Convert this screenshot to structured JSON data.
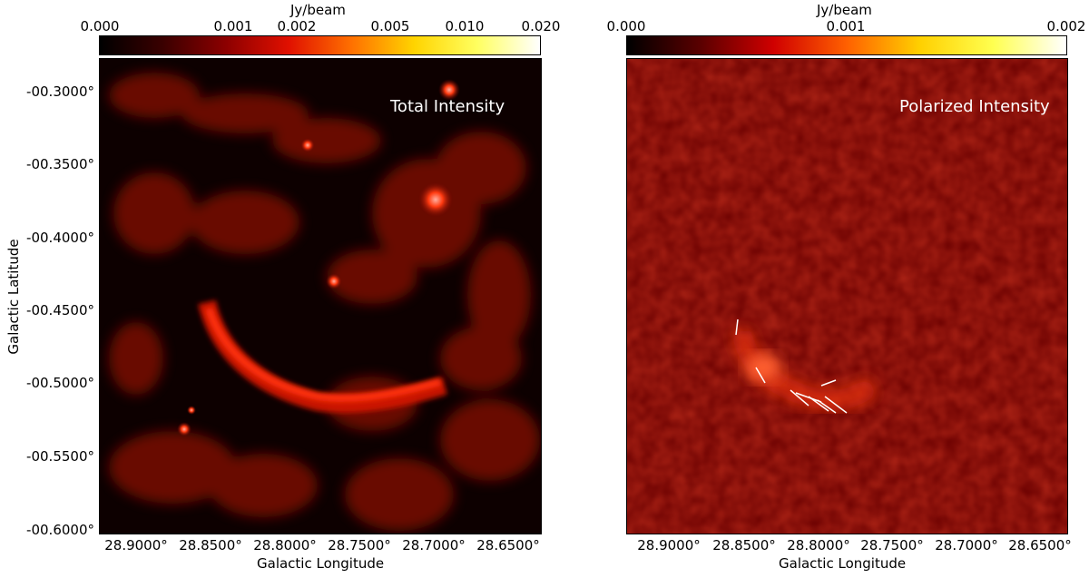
{
  "colorbars": [
    {
      "unit": "Jy/beam",
      "ticks": [
        "0.000",
        "0.001",
        "0.002",
        "0.005",
        "0.010",
        "0.020"
      ],
      "gradient": [
        "#000000",
        "#3a0000",
        "#8c0000",
        "#e01000",
        "#ff7000",
        "#ffd400",
        "#ffff60",
        "#ffffff"
      ]
    },
    {
      "unit": "Jy/beam",
      "ticks": [
        "0.000",
        "0.001",
        "0.002"
      ],
      "gradient": [
        "#000000",
        "#5a0000",
        "#d00000",
        "#ff6000",
        "#ffd000",
        "#ffff50",
        "#ffffff"
      ]
    }
  ],
  "panels": [
    {
      "label": "Total Intensity",
      "background": "#0d0000",
      "ylabel": "Galactic Latitude",
      "xlabel": "Galactic Longitude",
      "yticks": [
        "-00.3000°",
        "-00.3500°",
        "-00.4000°",
        "-00.4500°",
        "-00.5000°",
        "-00.5500°",
        "-00.6000°"
      ],
      "xticks": [
        "28.9000°",
        "28.8500°",
        "28.8000°",
        "28.7500°",
        "28.7000°",
        "28.6500°"
      ]
    },
    {
      "label": "Polarized Intensity",
      "background": "#6a0000",
      "xlabel": "Galactic Longitude",
      "xticks": [
        "28.9000°",
        "28.8500°",
        "28.8000°",
        "28.7500°",
        "28.7000°",
        "28.6500°"
      ]
    }
  ]
}
